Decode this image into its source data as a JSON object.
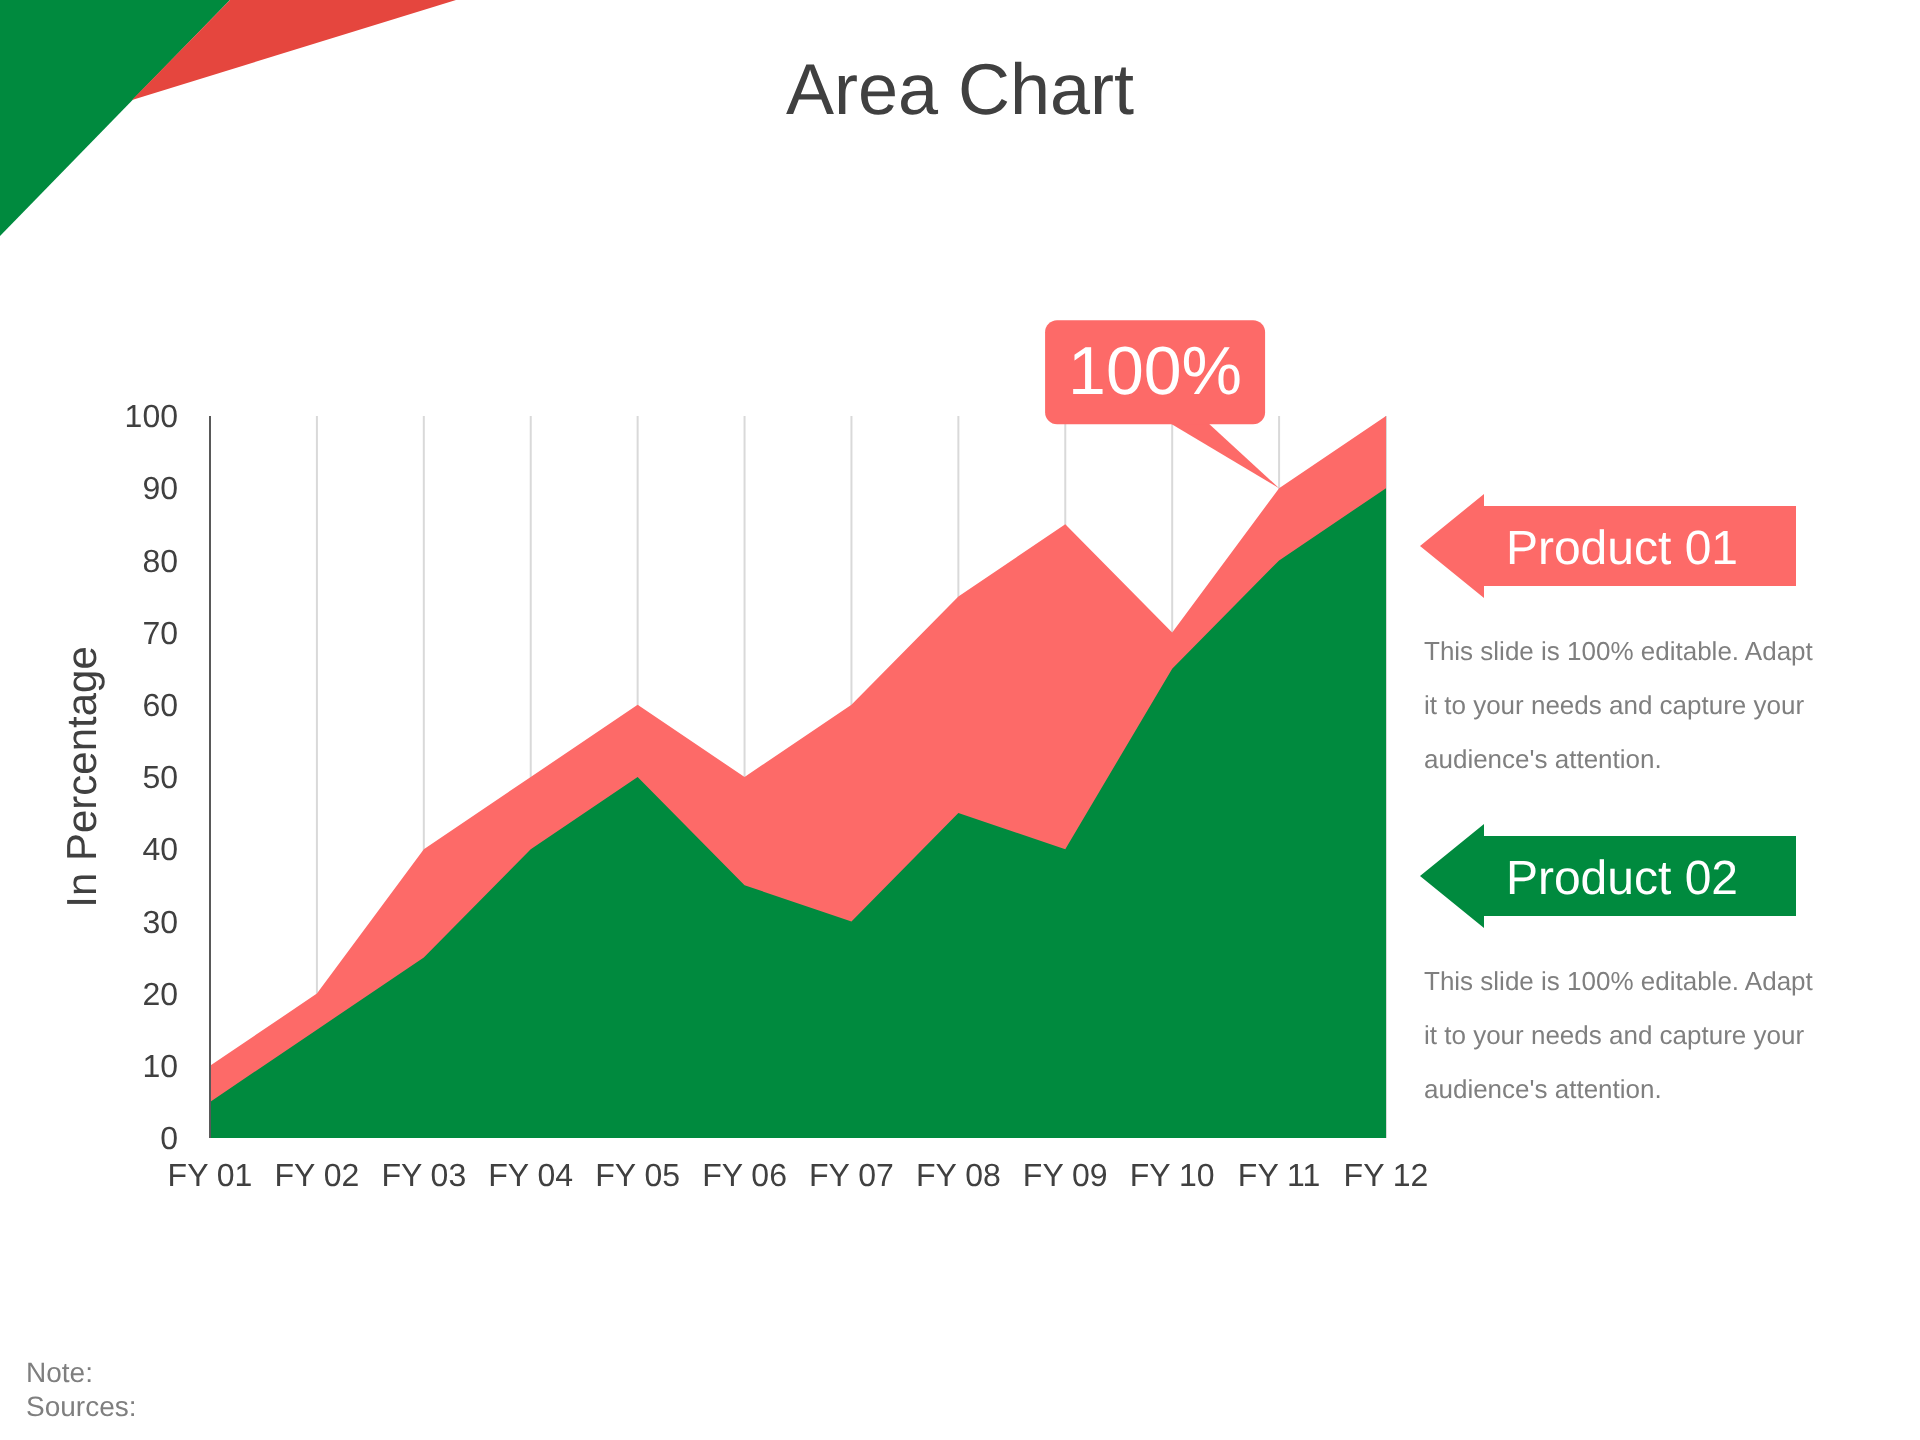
{
  "chart_data": {
    "type": "area",
    "title": "Area Chart",
    "ylabel": "In Percentage",
    "categories": [
      "FY 01",
      "FY 02",
      "FY 03",
      "FY 04",
      "FY 05",
      "FY 06",
      "FY 07",
      "FY 08",
      "FY 09",
      "FY 10",
      "FY 11",
      "FY 12"
    ],
    "series": [
      {
        "name": "Product 01",
        "color": "#fd6a68",
        "values": [
          10,
          20,
          40,
          50,
          60,
          50,
          60,
          75,
          85,
          70,
          90,
          100
        ]
      },
      {
        "name": "Product 02",
        "color": "#008a3e",
        "values": [
          5,
          15,
          25,
          40,
          50,
          35,
          30,
          45,
          40,
          65,
          80,
          90
        ]
      }
    ],
    "ylim": [
      0,
      100
    ],
    "yticks": [
      0,
      10,
      20,
      30,
      40,
      50,
      60,
      70,
      80,
      90,
      100
    ],
    "grid": "x",
    "legend": "right",
    "annotations": [
      "This slide is 100% editable. Adapt it to your needs and capture your audience's attention.",
      "This slide is 100% editable. Adapt it to your needs and capture your audience's attention.",
      {
        "text": "100%",
        "x": "FY 11",
        "y": 90
      },
      "Note:",
      "Sources:"
    ]
  }
}
